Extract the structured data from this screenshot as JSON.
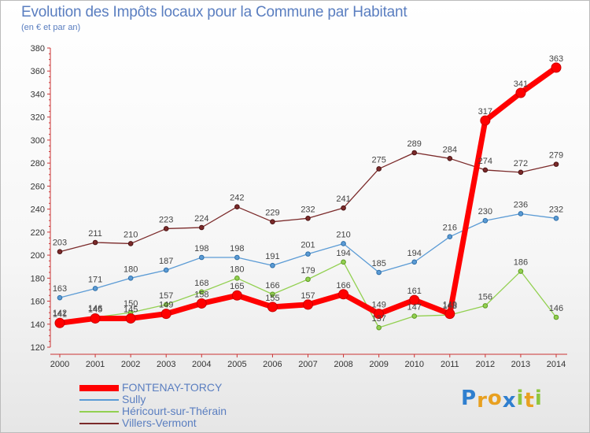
{
  "header": {
    "title": "Evolution des Impôts locaux pour la Commune par Habitant",
    "subtitle": "(en € et par an)"
  },
  "logo": {
    "letters": [
      "P",
      "r",
      "o",
      "x",
      "i",
      "t",
      "i"
    ],
    "colors": [
      "#2f7fcf",
      "#e8a020",
      "#e8a020",
      "#2f7fcf",
      "#8dc63f",
      "#e8a020",
      "#8dc63f"
    ]
  },
  "chart_data": {
    "type": "line",
    "title": "Evolution des Impôts locaux pour la Commune par Habitant",
    "subtitle": "(en € et par an)",
    "x": [
      "2000",
      "2001",
      "2002",
      "2003",
      "2004",
      "2005",
      "2006",
      "2007",
      "2008",
      "2009",
      "2010",
      "2011",
      "2012",
      "2013",
      "2014"
    ],
    "ylim": [
      120,
      380
    ],
    "yticks": [
      120,
      140,
      160,
      180,
      200,
      220,
      240,
      260,
      280,
      300,
      320,
      340,
      360,
      380
    ],
    "grid": false,
    "legend_position": "bottom-left",
    "series": [
      {
        "name": "FONTENAY-TORCY",
        "color": "#ff0000",
        "values": [
          141,
          145,
          145,
          149,
          158,
          165,
          155,
          157,
          166,
          149,
          161,
          149,
          317,
          341,
          363
        ],
        "labels": [
          "141",
          "145",
          "145",
          "149",
          "158",
          "165",
          "155",
          "157",
          "166",
          "149",
          "161",
          "149",
          "317",
          "341",
          "363"
        ]
      },
      {
        "name": "Sully",
        "color": "#5b9bd5",
        "values": [
          163,
          171,
          180,
          187,
          198,
          198,
          191,
          201,
          210,
          185,
          194,
          216,
          230,
          236,
          232
        ],
        "labels": [
          "163",
          "171",
          "180",
          "187",
          "198",
          "198",
          "191",
          "201",
          "210",
          "185",
          "194",
          "216",
          "230",
          "236",
          "232"
        ]
      },
      {
        "name": "Héricourt-sur-Thérain",
        "color": "#92d050",
        "values": [
          142,
          146,
          150,
          157,
          168,
          180,
          166,
          179,
          194,
          137,
          147,
          148,
          156,
          186,
          146
        ],
        "labels": [
          "142",
          "146",
          "150",
          "157",
          "168",
          "180",
          "166",
          "179",
          "194",
          "137",
          "147",
          "148",
          "156",
          "186",
          "146"
        ]
      },
      {
        "name": "Villers-Vermont",
        "color": "#7b2a2a",
        "values": [
          203,
          211,
          210,
          223,
          224,
          242,
          229,
          232,
          241,
          275,
          289,
          284,
          274,
          272,
          279
        ],
        "labels": [
          "203",
          "211",
          "210",
          "223",
          "224",
          "242",
          "229",
          "232",
          "241",
          "275",
          "289",
          "284",
          "274",
          "272",
          "279"
        ]
      }
    ]
  }
}
